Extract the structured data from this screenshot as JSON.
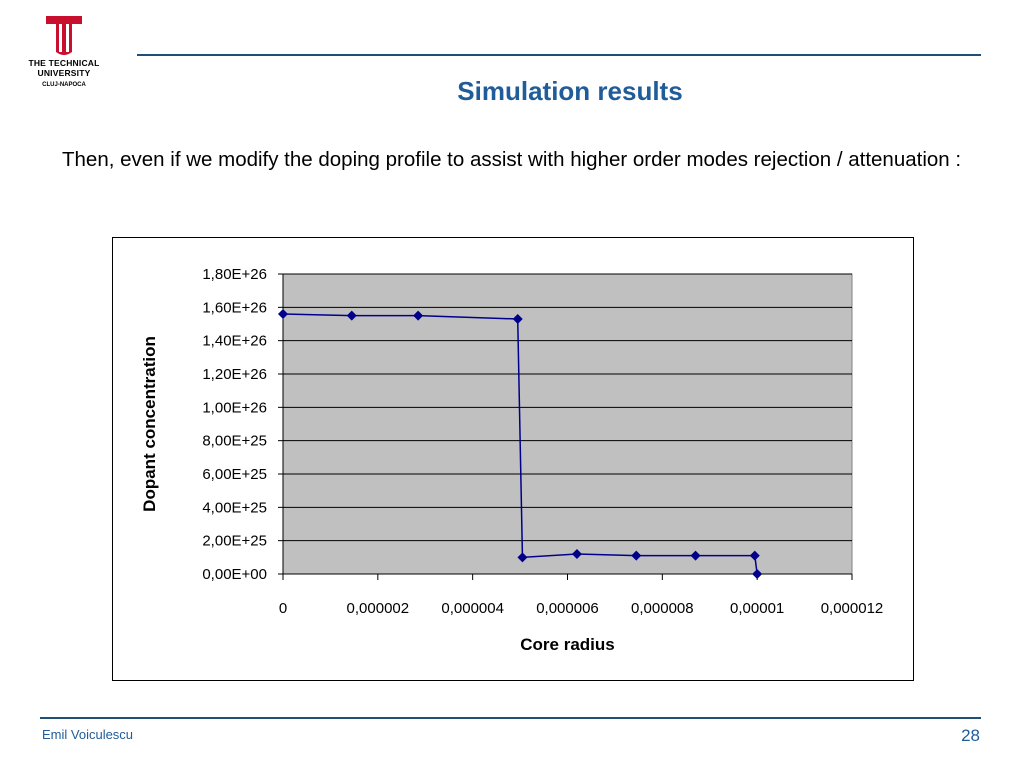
{
  "logo": {
    "line1": "THE TECHNICAL",
    "line2": "UNIVERSITY",
    "line3": "CLUJ-NAPOCA",
    "color": "#c8102e"
  },
  "slide": {
    "title": "Simulation results",
    "body": "Then, even if we modify the doping profile to assist with higher order modes rejection / attenuation :"
  },
  "footer": {
    "author": "Emil Voiculescu",
    "page": "28"
  },
  "colors": {
    "accent": "#1f5c99",
    "rule": "#1f4e79",
    "plot_background": "#c0c0c0",
    "series": "#00008b"
  },
  "chart_data": {
    "type": "line",
    "title": "",
    "xlabel": "Core radius",
    "ylabel": "Dopant concentration",
    "xlim": [
      0,
      1.2e-05
    ],
    "ylim": [
      0,
      1.8e+26
    ],
    "xticks": [
      0,
      2e-06,
      4e-06,
      6e-06,
      8e-06,
      1e-05,
      1.2e-05
    ],
    "xtick_labels": [
      "0",
      "0,000002",
      "0,000004",
      "0,000006",
      "0,000008",
      "0,00001",
      "0,000012"
    ],
    "yticks": [
      0,
      2e+25,
      4e+25,
      6e+25,
      8e+25,
      1e+26,
      1.2e+26,
      1.4e+26,
      1.6e+26,
      1.8e+26
    ],
    "ytick_labels": [
      "0,00E+00",
      "2,00E+25",
      "4,00E+25",
      "6,00E+25",
      "8,00E+25",
      "1,00E+26",
      "1,20E+26",
      "1,40E+26",
      "1,60E+26",
      "1,80E+26"
    ],
    "grid": "horizontal",
    "legend": "none",
    "marker": "diamond",
    "series": [
      {
        "x": [
          0,
          1.45e-06,
          2.85e-06,
          4.95e-06,
          5.05e-06,
          6.2e-06,
          7.45e-06,
          8.7e-06,
          9.95e-06,
          1e-05
        ],
        "y": [
          1.56e+26,
          1.55e+26,
          1.55e+26,
          1.53e+26,
          1e+25,
          1.2e+25,
          1.1e+25,
          1.1e+25,
          1.1e+25,
          0
        ]
      }
    ]
  }
}
